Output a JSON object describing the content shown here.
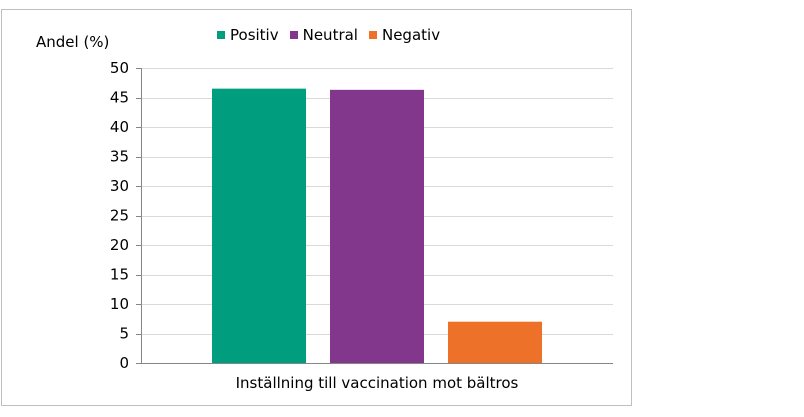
{
  "chart_data": {
    "type": "bar",
    "title": "",
    "xlabel": "Inställning till vaccination mot bältros",
    "ylabel": "Andel (%)",
    "ylim": [
      0,
      50
    ],
    "yticks": [
      "0",
      "5",
      "10",
      "15",
      "20",
      "25",
      "30",
      "35",
      "40",
      "45",
      "50"
    ],
    "grid": true,
    "legend_position": "top",
    "categories": [
      "Inställning till vaccination mot bältros"
    ],
    "series": [
      {
        "name": "Positiv",
        "values": [
          46.5
        ],
        "color": "#009e7f"
      },
      {
        "name": "Neutral",
        "values": [
          46.3
        ],
        "color": "#82368c"
      },
      {
        "name": "Negativ",
        "values": [
          7.0
        ],
        "color": "#ee7129"
      }
    ]
  }
}
